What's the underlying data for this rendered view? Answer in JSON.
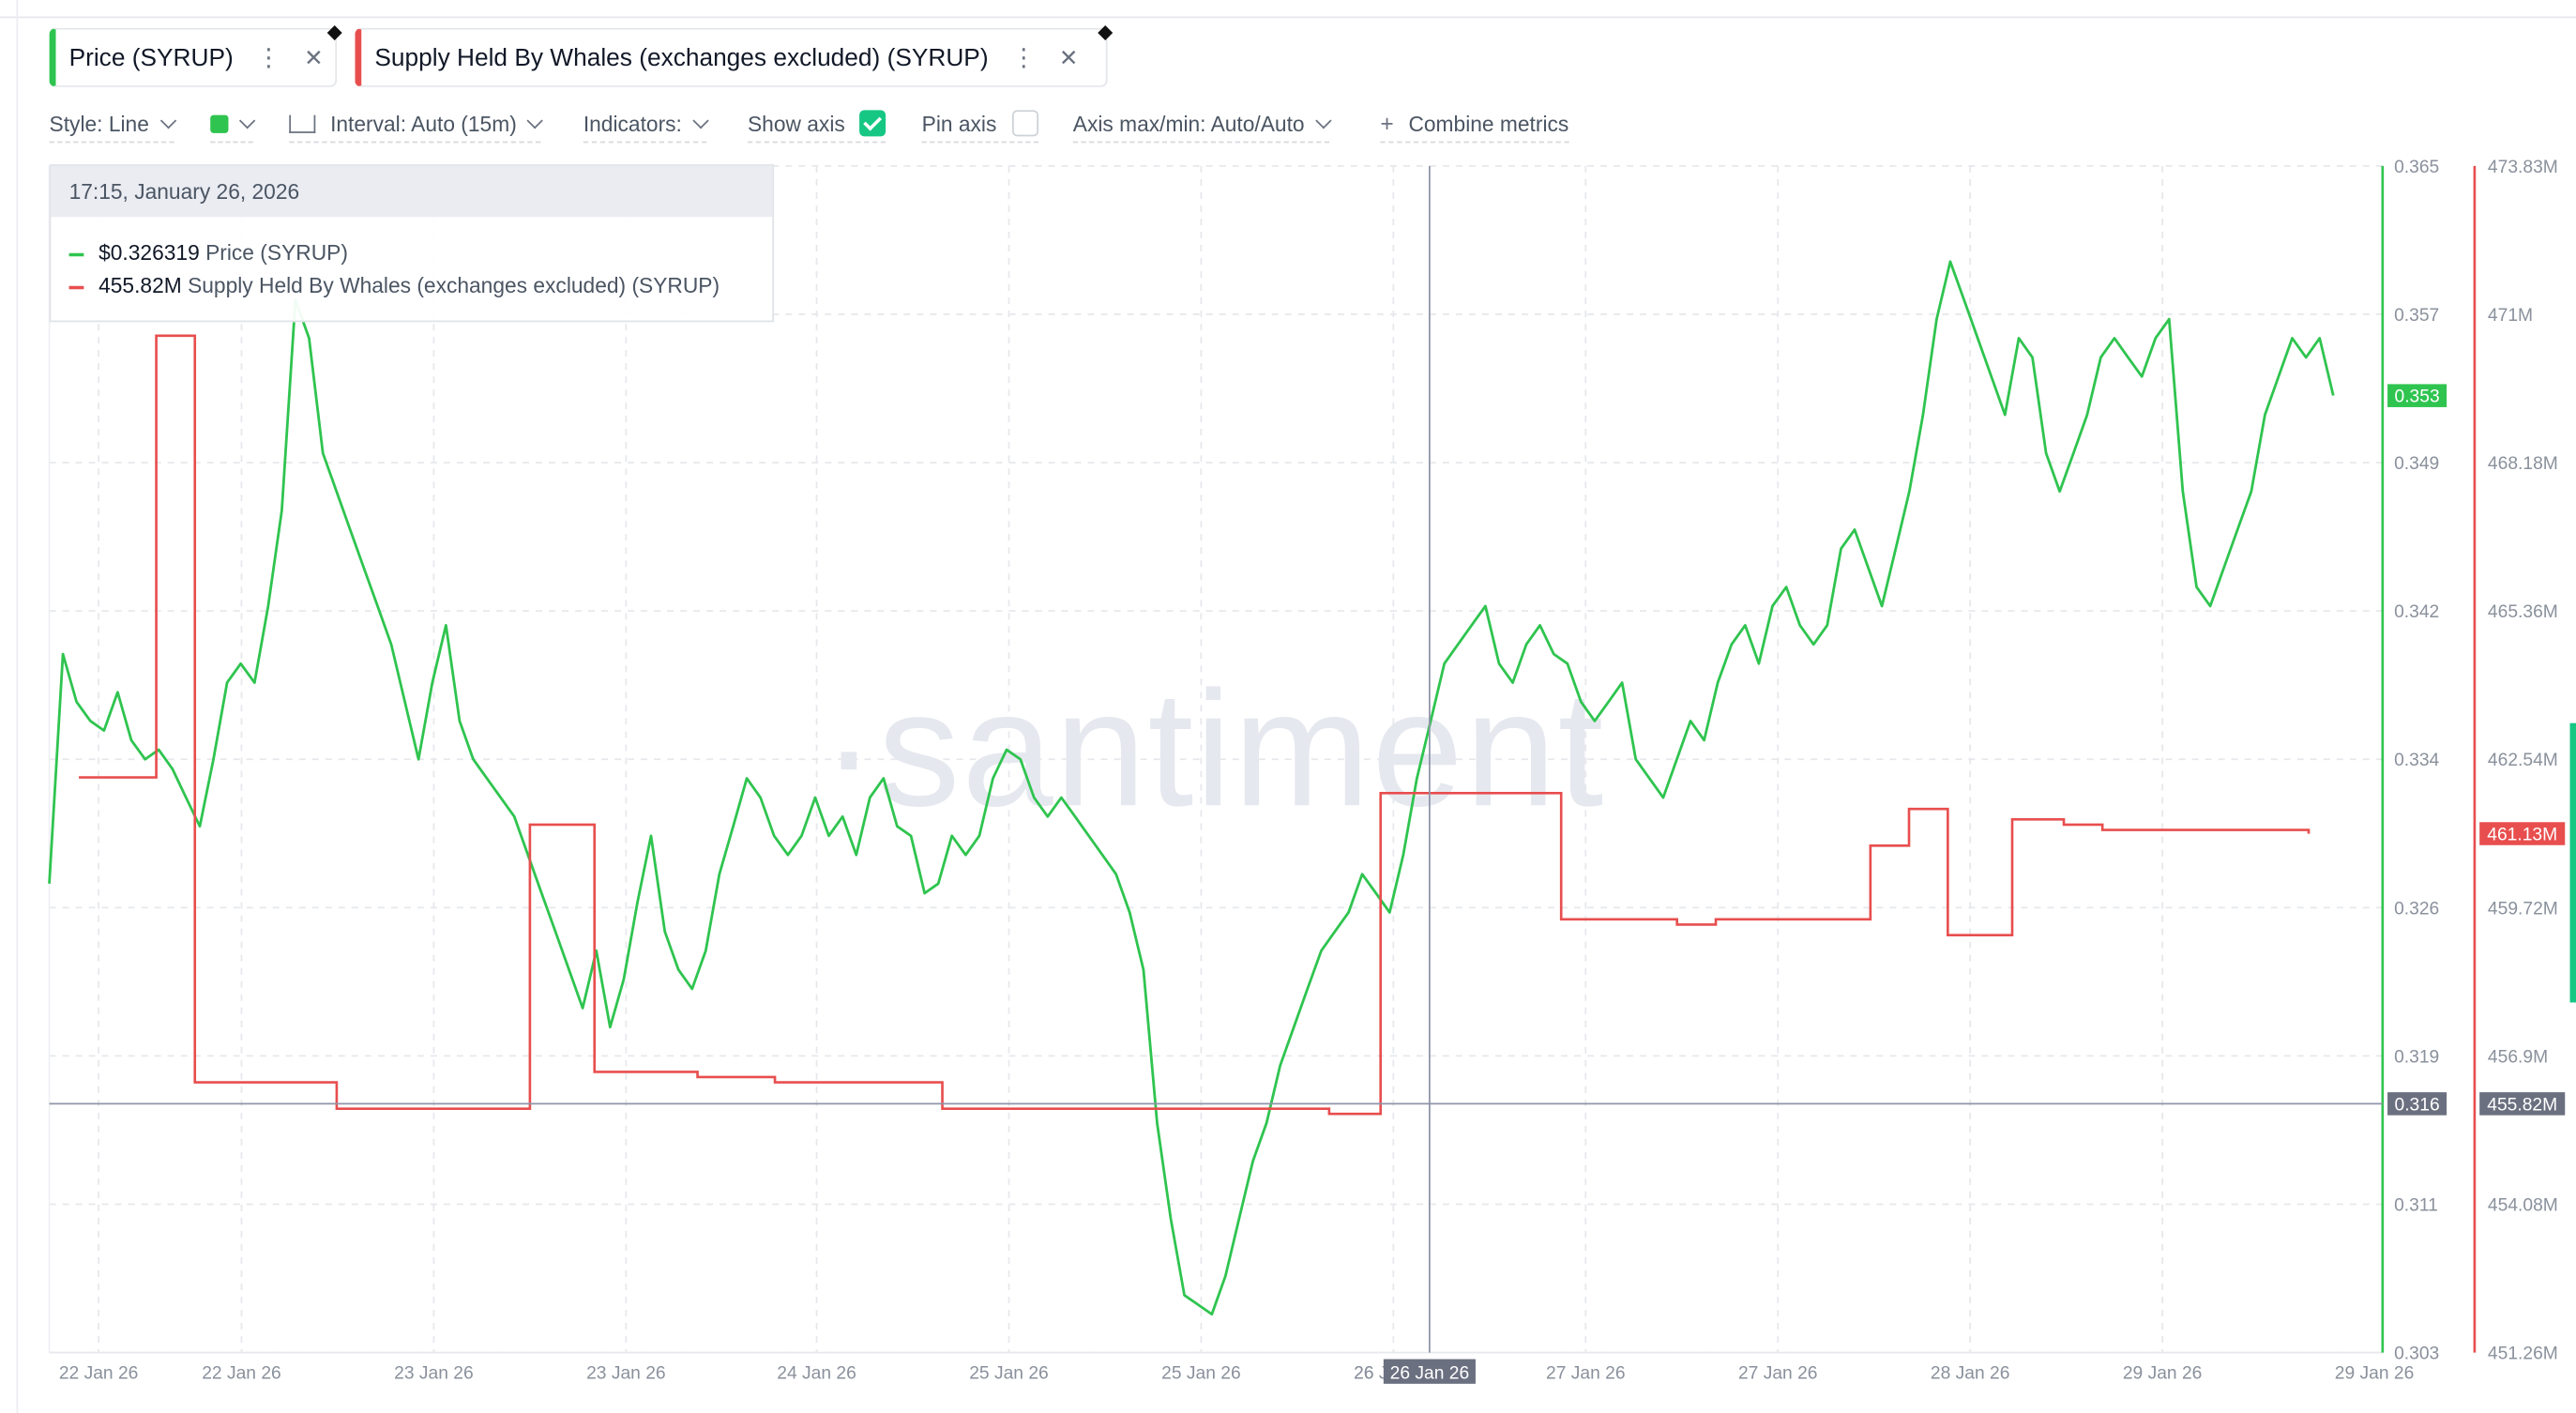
{
  "metrics": [
    {
      "label": "Price (SYRUP)",
      "color": "#2fc44f"
    },
    {
      "label": "Supply Held By Whales (exchanges excluded) (SYRUP)",
      "color": "#e84e4e"
    }
  ],
  "toolbar": {
    "style": "Style: Line",
    "interval": "Interval: Auto (15m)",
    "indicators": "Indicators:",
    "show_axis": "Show axis",
    "pin_axis": "Pin axis",
    "axis_maxmin": "Axis max/min: Auto/Auto",
    "combine": "Combine metrics"
  },
  "icons": {
    "more": "more-vertical-icon",
    "close": "close-icon",
    "eth": "ethereum-icon",
    "interval": "ruler-icon",
    "plus": "plus-icon"
  },
  "tooltip": {
    "time": "17:15, January 26, 2026",
    "price_value": "$0.326319",
    "price_label": "Price (SYRUP)",
    "whale_value": "455.82M",
    "whale_label": "Supply Held By Whales (exchanges excluded) (SYRUP)"
  },
  "watermark": "·santiment",
  "chart_data": {
    "type": "line",
    "x_ticks": [
      "22 Jan 26",
      "22 Jan 26",
      "23 Jan 26",
      "23 Jan 26",
      "24 Jan 26",
      "25 Jan 26",
      "25 Jan 26",
      "26 Jan 26",
      "27 Jan 26",
      "27 Jan 26",
      "28 Jan 26",
      "29 Jan 26",
      "29 Jan 26"
    ],
    "x_tick_partial": "26",
    "crosshair": {
      "x_label": "26 Jan 26",
      "price": "0.316",
      "whales": "455.82M"
    },
    "y_left": {
      "ticks": [
        "0.365",
        "0.357",
        "0.349",
        "0.342",
        "0.334",
        "0.326",
        "0.319",
        "0.311",
        "0.303"
      ],
      "range": [
        0.303,
        0.365
      ],
      "last_value": "0.353"
    },
    "y_right": {
      "ticks": [
        "473.83M",
        "471M",
        "468.18M",
        "465.36M",
        "462.54M",
        "459.72M",
        "456.9M",
        "454.08M",
        "451.26M"
      ],
      "range": [
        451.26,
        473.83
      ],
      "last_value": "461.13M"
    },
    "series": [
      {
        "name": "Price (SYRUP)",
        "color": "#2fc44f",
        "values": [
          0.3275,
          0.3395,
          0.337,
          0.336,
          0.3355,
          0.3375,
          0.335,
          0.334,
          0.3345,
          0.3335,
          0.332,
          0.3305,
          0.334,
          0.338,
          0.339,
          0.338,
          0.342,
          0.347,
          0.358,
          0.356,
          0.35,
          0.348,
          0.346,
          0.344,
          0.342,
          0.34,
          0.337,
          0.334,
          0.338,
          0.341,
          0.336,
          0.334,
          0.333,
          0.332,
          0.331,
          0.329,
          0.327,
          0.325,
          0.323,
          0.321,
          0.324,
          0.32,
          0.3225,
          0.3265,
          0.33,
          0.325,
          0.323,
          0.322,
          0.324,
          0.328,
          0.3305,
          0.333,
          0.332,
          0.33,
          0.329,
          0.33,
          0.332,
          0.33,
          0.331,
          0.329,
          0.332,
          0.333,
          0.3305,
          0.33,
          0.327,
          0.3275,
          0.33,
          0.329,
          0.33,
          0.333,
          0.3345,
          0.334,
          0.332,
          0.331,
          0.332,
          0.331,
          0.33,
          0.329,
          0.328,
          0.326,
          0.323,
          0.315,
          0.31,
          0.306,
          0.3055,
          0.305,
          0.307,
          0.31,
          0.313,
          0.315,
          0.318,
          0.32,
          0.322,
          0.324,
          0.325,
          0.326,
          0.328,
          0.327,
          0.326,
          0.329,
          0.333,
          0.336,
          0.339,
          0.34,
          0.341,
          0.342,
          0.339,
          0.338,
          0.34,
          0.341,
          0.3395,
          0.339,
          0.337,
          0.336,
          0.337,
          0.338,
          0.334,
          0.333,
          0.332,
          0.334,
          0.336,
          0.335,
          0.338,
          0.34,
          0.341,
          0.339,
          0.342,
          0.343,
          0.341,
          0.34,
          0.341,
          0.345,
          0.346,
          0.344,
          0.342,
          0.345,
          0.348,
          0.352,
          0.357,
          0.36,
          0.358,
          0.356,
          0.354,
          0.352,
          0.356,
          0.355,
          0.35,
          0.348,
          0.35,
          0.352,
          0.355,
          0.356,
          0.355,
          0.354,
          0.356,
          0.357,
          0.348,
          0.343,
          0.342,
          0.344,
          0.346,
          0.348,
          0.352,
          0.354,
          0.356,
          0.355,
          0.356,
          0.353
        ]
      },
      {
        "name": "Supply Held By Whales (exchanges excluded) (SYRUP)",
        "color": "#e84e4e",
        "step": true,
        "values": [
          462.2,
          462.2,
          462.2,
          462.2,
          462.2,
          462.2,
          470.6,
          470.6,
          470.6,
          456.4,
          456.4,
          456.4,
          456.4,
          456.4,
          456.4,
          456.4,
          456.4,
          456.4,
          456.4,
          456.4,
          455.9,
          455.9,
          455.9,
          455.9,
          455.9,
          455.9,
          455.9,
          455.9,
          455.9,
          455.9,
          455.9,
          455.9,
          455.9,
          455.9,
          455.9,
          461.3,
          461.3,
          461.3,
          461.3,
          461.3,
          456.6,
          456.6,
          456.6,
          456.6,
          456.6,
          456.6,
          456.6,
          456.6,
          456.5,
          456.5,
          456.5,
          456.5,
          456.5,
          456.5,
          456.4,
          456.4,
          456.4,
          456.4,
          456.4,
          456.4,
          456.4,
          456.4,
          456.4,
          456.4,
          456.4,
          456.4,
          456.4,
          455.9,
          455.9,
          455.9,
          455.9,
          455.9,
          455.9,
          455.9,
          455.9,
          455.9,
          455.9,
          455.9,
          455.9,
          455.9,
          455.9,
          455.9,
          455.9,
          455.9,
          455.9,
          455.9,
          455.9,
          455.9,
          455.9,
          455.9,
          455.9,
          455.9,
          455.9,
          455.9,
          455.9,
          455.9,
          455.9,
          455.8,
          455.8,
          455.8,
          455.8,
          461.9,
          461.9,
          461.9,
          461.9,
          461.9,
          461.9,
          461.9,
          461.9,
          461.9,
          461.9,
          461.9,
          461.9,
          461.9,
          461.9,
          459.5,
          459.5,
          459.5,
          459.5,
          459.5,
          459.5,
          459.5,
          459.5,
          459.5,
          459.4,
          459.4,
          459.4,
          459.5,
          459.5,
          459.5,
          459.5,
          459.5,
          459.5,
          459.5,
          459.5,
          459.5,
          459.5,
          459.5,
          459.5,
          460.9,
          460.9,
          460.9,
          461.6,
          461.6,
          461.6,
          459.2,
          459.2,
          459.2,
          459.2,
          459.2,
          461.4,
          461.4,
          461.4,
          461.4,
          461.3,
          461.3,
          461.3,
          461.2,
          461.2,
          461.2,
          461.2,
          461.2,
          461.2,
          461.2,
          461.2,
          461.2,
          461.2,
          461.2,
          461.2,
          461.2,
          461.2,
          461.2,
          461.2,
          461.13
        ]
      }
    ],
    "grid": true,
    "legend": "top-left"
  }
}
